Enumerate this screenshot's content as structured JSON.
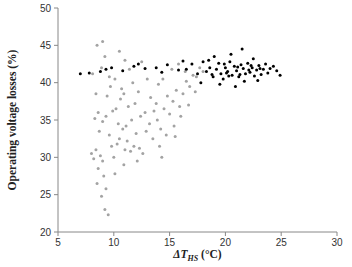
{
  "chart_data": {
    "type": "scatter",
    "x_label": "ΔTHS (°C)",
    "y_label": "Operating voltage losses (%)",
    "xlim": [
      5,
      30
    ],
    "xticks": [
      5,
      10,
      15,
      20,
      25,
      30
    ],
    "ylim": [
      20,
      50
    ],
    "yticks": [
      20,
      25,
      30,
      35,
      40,
      45,
      50
    ],
    "grid": false,
    "marker": "circle",
    "series": [
      {
        "color": "#a3a3a3",
        "x": [
          8.0,
          8.2,
          8.4,
          8.6,
          8.8,
          9.0,
          8.5,
          8.9,
          9.2,
          9.5,
          9.1,
          8.7,
          8.3,
          8.6,
          9.0,
          9.3,
          9.6,
          9.8,
          10.0,
          10.3,
          10.5,
          10.8,
          11.0,
          11.2,
          11.5,
          11.8,
          12.0,
          12.3,
          12.6,
          12.9,
          10.2,
          10.6,
          10.9,
          11.3,
          11.6,
          11.9,
          12.2,
          10.4,
          9.4,
          9.7,
          10.1,
          8.9,
          9.2,
          8.5,
          9.0,
          10.5,
          11.0,
          11.4,
          12.5,
          13.0,
          13.3,
          13.6,
          13.9,
          14.2,
          14.5,
          14.8,
          15.0,
          15.3,
          15.6,
          15.9,
          16.2,
          16.5,
          16.8,
          17.1,
          17.4,
          17.7,
          18.0,
          14.0,
          14.4,
          15.2,
          15.8,
          16.4,
          13.5,
          14.1,
          14.7,
          15.4,
          16.0,
          12.8,
          13.2,
          8.1,
          9.6,
          10.7,
          11.7,
          12.4,
          13.8,
          15.5,
          16.7,
          17.3,
          9.3,
          10.1,
          10.9,
          12.1,
          14.3,
          8.4,
          9.9,
          11.1
        ],
        "values": [
          30.5,
          29.8,
          31.0,
          28.5,
          30.2,
          29.5,
          26.5,
          24.8,
          23.0,
          22.3,
          27.5,
          33.5,
          35.2,
          36.0,
          34.8,
          35.5,
          33.0,
          31.5,
          30.0,
          31.8,
          32.5,
          33.8,
          31.0,
          32.2,
          30.8,
          31.5,
          33.2,
          31.2,
          30.5,
          33.5,
          36.5,
          37.8,
          38.5,
          36.8,
          35.0,
          37.2,
          38.8,
          34.5,
          38.2,
          39.5,
          40.5,
          42.0,
          43.5,
          45.0,
          45.5,
          44.2,
          43.0,
          41.8,
          42.8,
          40.5,
          38.0,
          36.2,
          35.0,
          33.8,
          36.5,
          38.2,
          35.8,
          37.5,
          39.0,
          36.8,
          38.5,
          40.2,
          39.5,
          41.0,
          40.8,
          42.0,
          41.5,
          39.8,
          40.5,
          41.8,
          42.5,
          41.5,
          32.5,
          31.5,
          33.0,
          34.2,
          35.5,
          36.0,
          34.5,
          41.2,
          40.8,
          39.2,
          40.0,
          35.5,
          37.2,
          32.8,
          37.0,
          38.8,
          25.8,
          27.8,
          29.0,
          29.5,
          30.0,
          38.5,
          36.2,
          34.2
        ]
      },
      {
        "color": "#000000",
        "x": [
          16.5,
          17.0,
          17.5,
          18.0,
          18.3,
          18.6,
          18.9,
          19.2,
          19.4,
          19.6,
          19.8,
          20.0,
          20.2,
          20.4,
          20.6,
          20.8,
          21.0,
          21.2,
          21.4,
          21.6,
          21.8,
          22.0,
          22.2,
          22.4,
          22.6,
          22.8,
          23.0,
          23.2,
          23.4,
          23.6,
          23.8,
          24.0,
          24.3,
          24.6,
          24.9,
          19.0,
          20.5,
          21.5,
          22.5,
          19.5,
          20.9,
          21.7,
          22.9,
          18.5,
          17.8,
          20.1,
          21.1,
          22.1,
          23.1,
          20.3,
          21.3,
          22.3,
          19.9,
          18.8,
          7.0,
          7.8,
          8.8,
          9.8,
          10.8,
          11.8,
          12.8,
          13.8,
          14.8,
          15.8,
          16.2,
          12.2,
          14.3,
          9.3
        ],
        "values": [
          41.8,
          42.5,
          41.2,
          42.8,
          41.5,
          42.0,
          40.8,
          41.8,
          42.6,
          41.2,
          40.5,
          42.0,
          41.5,
          42.8,
          41.0,
          42.2,
          41.6,
          40.8,
          42.4,
          41.9,
          41.2,
          42.6,
          41.4,
          42.0,
          40.9,
          41.7,
          42.3,
          41.1,
          41.8,
          42.5,
          41.3,
          41.9,
          42.2,
          41.6,
          41.0,
          43.5,
          43.8,
          44.5,
          43.2,
          39.8,
          39.5,
          40.2,
          40.3,
          43.0,
          40.0,
          41.3,
          42.1,
          41.7,
          41.9,
          40.9,
          41.1,
          42.3,
          42.5,
          41.1,
          41.2,
          41.3,
          41.5,
          42.0,
          41.6,
          42.2,
          41.9,
          42.0,
          42.4,
          41.7,
          42.9,
          42.5,
          41.4,
          41.8
        ]
      }
    ]
  }
}
